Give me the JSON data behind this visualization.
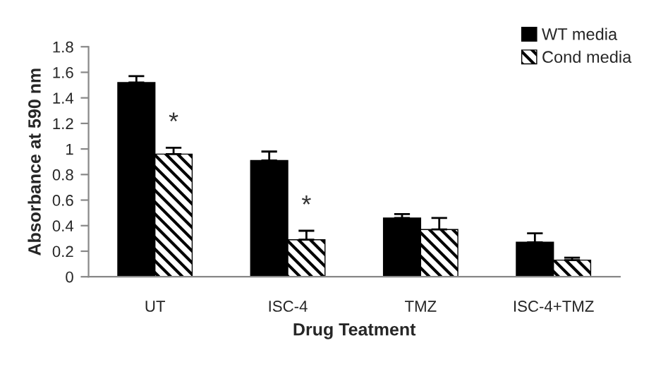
{
  "chart_data": {
    "type": "bar",
    "xlabel": "Drug Teatment",
    "ylabel": "Absorbance at 590 nm",
    "categories": [
      "UT",
      "ISC-4",
      "TMZ",
      "ISC-4+TMZ"
    ],
    "series": [
      {
        "name": "WT media",
        "color": "#000000",
        "values": [
          1.52,
          0.91,
          0.46,
          0.27
        ],
        "errors": [
          [
            1.52,
            1.57
          ],
          [
            0.91,
            0.98
          ],
          [
            0.46,
            0.49
          ],
          [
            0.27,
            0.34
          ]
        ]
      },
      {
        "name": "Cond media",
        "color": "#000000",
        "values": [
          0.96,
          0.29,
          0.37,
          0.13
        ],
        "errors": [
          [
            0.96,
            1.01
          ],
          [
            0.29,
            0.36
          ],
          [
            0.37,
            0.46
          ],
          [
            0.13,
            0.15
          ]
        ]
      }
    ],
    "annotations": [
      {
        "text": "*",
        "x": "UT",
        "y": 1.2
      },
      {
        "text": "*",
        "x": "ISC-4",
        "y": 0.55
      }
    ],
    "ylim": [
      0,
      1.8
    ],
    "yticks": [
      0,
      0.2,
      0.4,
      0.6,
      0.8,
      1,
      1.2,
      1.4,
      1.6,
      1.8
    ],
    "grid": false,
    "legend": "top right"
  }
}
